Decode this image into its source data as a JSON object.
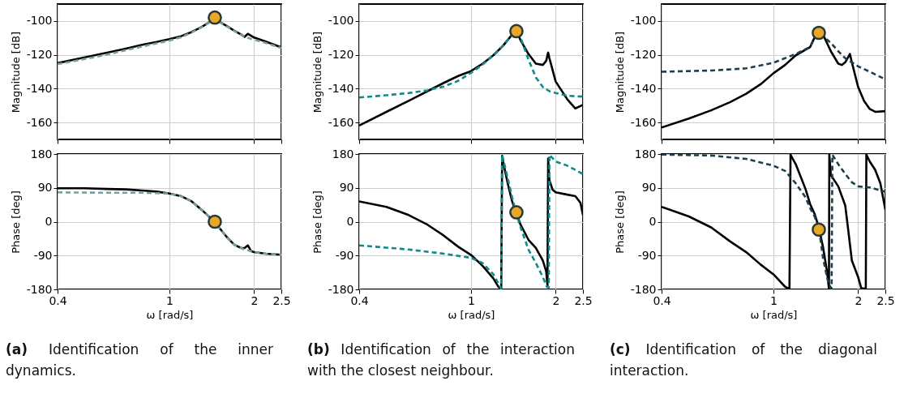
{
  "chart_data": [
    {
      "type": "line",
      "log": "x",
      "xlim": [
        0.4,
        2.5
      ],
      "xticks": [
        0.4,
        1,
        2,
        2.5
      ],
      "ylim": [
        -170,
        -90
      ],
      "yticks": [
        -160,
        -140,
        -120,
        -100
      ],
      "ylabel": "Magnitude [dB]",
      "grid": true,
      "tick_labels": "y",
      "series": [
        {
          "color": "#000000",
          "line_style": "solid",
          "x": [
            0.4,
            0.5,
            0.6,
            0.7,
            0.8,
            0.9,
            1,
            1.1,
            1.2,
            1.3,
            1.4,
            1.45,
            1.5,
            1.6,
            1.7,
            1.8,
            1.85,
            1.9,
            2,
            2.2,
            2.5
          ],
          "values": [
            -124.9,
            -121.5,
            -118.7,
            -116.3,
            -114.1,
            -112.4,
            -110.7,
            -109,
            -106.5,
            -103.6,
            -100.3,
            -98.5,
            -100.3,
            -103,
            -105.7,
            -108,
            -109.4,
            -107.6,
            -109.8,
            -112.2,
            -115.6
          ]
        },
        {
          "color": "#7a9e9f",
          "line_style": "dashed",
          "x": [
            0.4,
            0.5,
            0.6,
            0.7,
            0.8,
            0.9,
            1,
            1.1,
            1.2,
            1.3,
            1.4,
            1.45,
            1.5,
            1.6,
            1.7,
            1.8,
            1.85,
            1.9,
            2,
            2.2,
            2.5
          ],
          "values": [
            -125.5,
            -122.5,
            -119.8,
            -117.3,
            -115.1,
            -113.2,
            -111.6,
            -109.6,
            -106.8,
            -103.8,
            -100.5,
            -98.7,
            -100.5,
            -103.2,
            -105.9,
            -108.2,
            -109.3,
            -110,
            -111,
            -113,
            -116
          ]
        },
        {
          "type": "scatter",
          "marker": "circle",
          "color": "#e8a825",
          "x": [
            1.45
          ],
          "values": [
            -98
          ]
        }
      ]
    },
    {
      "type": "line",
      "log": "x",
      "xlim": [
        0.4,
        2.5
      ],
      "xticks": [
        0.4,
        1,
        2,
        2.5
      ],
      "ylim": [
        -180,
        180
      ],
      "yticks": [
        -180,
        -90,
        0,
        90,
        180
      ],
      "xlabel": "ω [rad/s]",
      "ylabel": "Phase [deg]",
      "grid": true,
      "annotations": [
        "(a) Identification of the inner dynamics."
      ],
      "series": [
        {
          "color": "#000000",
          "line_style": "solid",
          "x": [
            0.4,
            0.5,
            0.6,
            0.7,
            0.8,
            0.9,
            1,
            1.1,
            1.2,
            1.3,
            1.4,
            1.45,
            1.5,
            1.6,
            1.7,
            1.8,
            1.85,
            1.9,
            1.95,
            2,
            2.2,
            2.5
          ],
          "values": [
            89,
            89,
            87,
            86,
            83,
            80,
            75,
            68,
            54,
            32,
            10,
            0,
            -15,
            -41,
            -61,
            -70,
            -70,
            -63,
            -78,
            -81,
            -85,
            -88
          ]
        },
        {
          "color": "#7a9e9f",
          "line_style": "dashed",
          "x": [
            0.4,
            0.6,
            0.8,
            1,
            1.1,
            1.2,
            1.3,
            1.4,
            1.45,
            1.5,
            1.6,
            1.7,
            1.8,
            1.85,
            1.9,
            2,
            2.2,
            2.5
          ],
          "values": [
            78,
            77,
            77,
            75,
            68,
            54,
            32,
            10,
            0,
            -15,
            -41,
            -61,
            -70,
            -75,
            -76,
            -81,
            -85,
            -88
          ]
        },
        {
          "type": "scatter",
          "marker": "circle",
          "color": "#e8a825",
          "x": [
            1.45
          ],
          "values": [
            0
          ]
        }
      ]
    },
    {
      "type": "line",
      "log": "x",
      "xlim": [
        0.4,
        2.5
      ],
      "xticks": [
        0.4,
        1,
        2,
        2.5
      ],
      "ylim": [
        -170,
        -90
      ],
      "yticks": [
        -160,
        -140,
        -120,
        -100
      ],
      "ylabel": "Magnitude [dB]",
      "grid": true,
      "tick_labels": "y",
      "series": [
        {
          "color": "#000000",
          "line_style": "solid",
          "x": [
            0.4,
            0.5,
            0.6,
            0.7,
            0.8,
            0.9,
            1,
            1.1,
            1.2,
            1.3,
            1.4,
            1.45,
            1.5,
            1.6,
            1.7,
            1.8,
            1.85,
            1.88,
            1.9,
            2,
            2.2,
            2.35,
            2.5
          ],
          "values": [
            -161.8,
            -153.7,
            -147.2,
            -141.5,
            -136.6,
            -132.5,
            -129.6,
            -125.2,
            -120.3,
            -114.6,
            -108,
            -105.2,
            -111.4,
            -119.5,
            -125.2,
            -126,
            -123.6,
            -118.7,
            -122,
            -135.8,
            -146.3,
            -151.7,
            -149.6
          ]
        },
        {
          "color": "#0e8a8a",
          "line_style": "dashed",
          "x": [
            0.4,
            0.5,
            0.6,
            0.7,
            0.8,
            0.9,
            1,
            1.1,
            1.2,
            1.3,
            1.4,
            1.45,
            1.5,
            1.6,
            1.7,
            1.8,
            1.9,
            2,
            2.2,
            2.5
          ],
          "values": [
            -145.2,
            -143.9,
            -142.6,
            -141,
            -138.7,
            -135.4,
            -130.6,
            -125.7,
            -120.3,
            -114.6,
            -108,
            -106.5,
            -109.8,
            -122.8,
            -133.3,
            -139,
            -141.5,
            -142.6,
            -144.2,
            -144.7
          ]
        },
        {
          "type": "scatter",
          "marker": "circle",
          "color": "#e8a825",
          "x": [
            1.45
          ],
          "values": [
            -106
          ]
        }
      ]
    },
    {
      "type": "line",
      "log": "x",
      "xlim": [
        0.4,
        2.5
      ],
      "xticks": [
        0.4,
        1,
        2,
        2.5
      ],
      "ylim": [
        -180,
        180
      ],
      "yticks": [
        -180,
        -90,
        0,
        90,
        180
      ],
      "xlabel": "ω [rad/s]",
      "ylabel": "Phase [deg]",
      "grid": true,
      "annotations": [
        "(b) Identification of the interaction with the closest neighbour."
      ],
      "series": [
        {
          "color": "#000000",
          "line_style": "solid",
          "x": [
            0.4,
            0.5,
            0.6,
            0.7,
            0.8,
            0.9,
            1,
            1.1,
            1.2,
            1.25,
            1.28,
            1.29,
            1.3,
            1.35,
            1.4,
            1.45,
            1.5,
            1.6,
            1.7,
            1.8,
            1.85,
            1.87,
            1.88,
            1.9,
            1.95,
            2,
            2.2,
            2.35,
            2.45,
            2.5
          ],
          "values": [
            54,
            39.5,
            17.6,
            -8,
            -37,
            -66.6,
            -88.5,
            -117.8,
            -150.7,
            -172.7,
            -178,
            175,
            160,
            102,
            54,
            21,
            -8,
            -48,
            -70,
            -103,
            -132,
            -170,
            168,
            110,
            85,
            78,
            72,
            68,
            50,
            18
          ]
        },
        {
          "color": "#0e8a8a",
          "line_style": "dashed",
          "x": [
            0.4,
            0.6,
            0.8,
            1,
            1.1,
            1.2,
            1.27,
            1.28,
            1.29,
            1.35,
            1.4,
            1.45,
            1.5,
            1.6,
            1.7,
            1.8,
            1.86,
            1.89,
            1.9,
            2,
            2.2,
            2.5
          ],
          "values": [
            -63,
            -74,
            -85,
            -96,
            -110,
            -140,
            -173,
            -178,
            178,
            116,
            65,
            21,
            -15,
            -74,
            -110,
            -147,
            -173,
            -175,
            178,
            160,
            149,
            127
          ]
        },
        {
          "type": "scatter",
          "marker": "circle",
          "color": "#e8a825",
          "x": [
            1.45
          ],
          "values": [
            25
          ]
        }
      ]
    },
    {
      "type": "line",
      "log": "x",
      "xlim": [
        0.4,
        2.5
      ],
      "xticks": [
        0.4,
        1,
        2,
        2.5
      ],
      "ylim": [
        -170,
        -90
      ],
      "yticks": [
        -160,
        -140,
        -120,
        -100
      ],
      "ylabel": "Magnitude [dB]",
      "grid": true,
      "tick_labels": "y",
      "series": [
        {
          "color": "#000000",
          "line_style": "solid",
          "x": [
            0.4,
            0.5,
            0.6,
            0.7,
            0.8,
            0.9,
            1,
            1.1,
            1.2,
            1.3,
            1.35,
            1.4,
            1.45,
            1.5,
            1.6,
            1.7,
            1.75,
            1.8,
            1.85,
            1.87,
            1.9,
            2,
            2.1,
            2.2,
            2.3,
            2.5
          ],
          "values": [
            -163,
            -157.7,
            -152.8,
            -148,
            -143,
            -137.4,
            -130.9,
            -126,
            -120.3,
            -117,
            -115.4,
            -109.8,
            -107.3,
            -108,
            -117.9,
            -125.2,
            -126,
            -124.4,
            -121,
            -119.5,
            -124.4,
            -139,
            -147.2,
            -152,
            -153.7,
            -153.3
          ]
        },
        {
          "color": "#1d3e4a",
          "line_style": "dashed",
          "x": [
            0.4,
            0.6,
            0.8,
            1,
            1.2,
            1.3,
            1.35,
            1.4,
            1.45,
            1.5,
            1.6,
            1.7,
            1.8,
            1.9,
            2,
            2.2,
            2.5
          ],
          "values": [
            -130,
            -129.3,
            -128,
            -124.7,
            -119.5,
            -116.7,
            -115.4,
            -109.8,
            -107.3,
            -108.9,
            -113,
            -117.9,
            -122,
            -124.4,
            -126.8,
            -130,
            -134.5
          ]
        },
        {
          "type": "scatter",
          "marker": "circle",
          "color": "#e8a825",
          "x": [
            1.45
          ],
          "values": [
            -107
          ]
        }
      ]
    },
    {
      "type": "line",
      "log": "x",
      "xlim": [
        0.4,
        2.5
      ],
      "xticks": [
        0.4,
        1,
        2,
        2.5
      ],
      "ylim": [
        -180,
        180
      ],
      "yticks": [
        -180,
        -90,
        0,
        90,
        180
      ],
      "xlabel": "ω [rad/s]",
      "ylabel": "Phase [deg]",
      "grid": true,
      "annotations": [
        "(c) Identification of the diagonal interaction."
      ],
      "series": [
        {
          "color": "#000000",
          "line_style": "solid",
          "x": [
            0.4,
            0.5,
            0.6,
            0.7,
            0.8,
            0.9,
            1,
            1.1,
            1.14,
            1.15,
            1.2,
            1.3,
            1.35,
            1.4,
            1.45,
            1.5,
            1.55,
            1.575,
            1.58,
            1.6,
            1.7,
            1.8,
            1.85,
            1.9,
            2,
            2.05,
            2.13,
            2.14,
            2.2,
            2.3,
            2.4,
            2.5
          ],
          "values": [
            39.5,
            14,
            -15,
            -52,
            -81,
            -114,
            -140,
            -173,
            -179,
            178,
            153,
            87,
            47,
            21,
            -15,
            -67,
            -132,
            -178,
            178,
            124,
            94,
            43,
            -30,
            -103,
            -147,
            -176,
            -179,
            178,
            160,
            138,
            102,
            32
          ]
        },
        {
          "color": "#1d3e4a",
          "line_style": "dashed",
          "x": [
            0.4,
            0.6,
            0.8,
            1,
            1.1,
            1.2,
            1.3,
            1.35,
            1.4,
            1.45,
            1.5,
            1.55,
            1.58,
            1.61,
            1.62,
            1.7,
            1.8,
            1.9,
            2,
            2.2,
            2.5
          ],
          "values": [
            178.5,
            176,
            167,
            149,
            135,
            102,
            65,
            36,
            14,
            -15,
            -96,
            -147,
            -169,
            -178,
            178,
            153,
            127,
            105,
            94,
            91,
            80
          ]
        },
        {
          "type": "scatter",
          "marker": "circle",
          "color": "#e8a825",
          "x": [
            1.45
          ],
          "values": [
            -21
          ]
        }
      ]
    }
  ]
}
